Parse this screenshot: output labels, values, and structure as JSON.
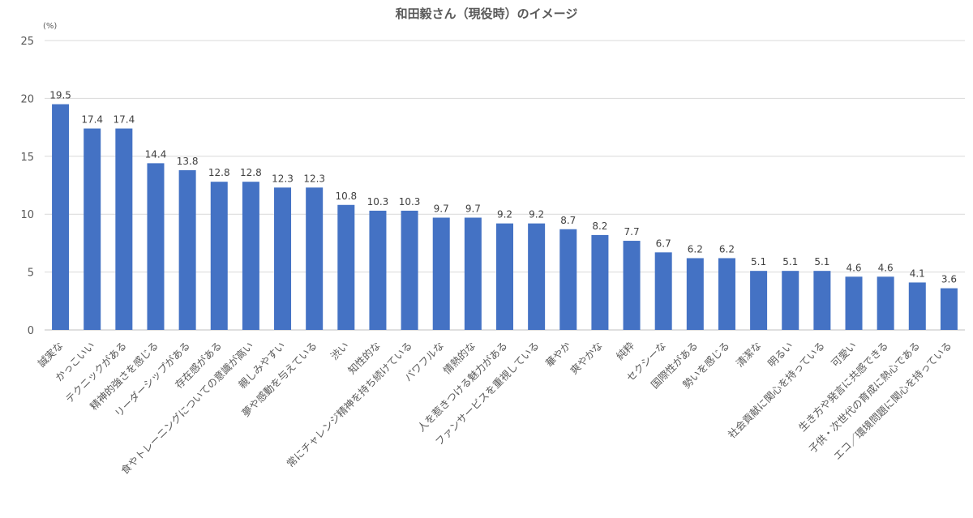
{
  "chart_data": {
    "type": "bar",
    "title": "和田毅さん（現役時）のイメージ",
    "ylabel": "(%)",
    "xlabel": "",
    "ylim": [
      0,
      25
    ],
    "yticks": [
      0,
      5,
      10,
      15,
      20,
      25
    ],
    "grid": true,
    "bar_color": "#4472C4",
    "categories": [
      "誠実な",
      "かっこいい",
      "テクニックがある",
      "精神的強さを感じる",
      "リーダーシップがある",
      "存在感がある",
      "食やトレーニングについての意識が高い",
      "親しみやすい",
      "夢や感動を与えている",
      "渋い",
      "知性的な",
      "常にチャレンジ精神を持ち続けている",
      "パワフルな",
      "情熱的な",
      "人を惹きつける魅力がある",
      "ファンサービスを重視している",
      "華やか",
      "爽やかな",
      "純粋",
      "セクシーな",
      "国際性がある",
      "勢いを感じる",
      "清潔な",
      "明るい",
      "社会貢献に関心を持っている",
      "可愛い",
      "生き方や発言に共感できる",
      "子供・次世代の育成に熱心である",
      "エコ／環境問題に関心を持っている"
    ],
    "values": [
      19.5,
      17.4,
      17.4,
      14.4,
      13.8,
      12.8,
      12.8,
      12.3,
      12.3,
      10.8,
      10.3,
      10.3,
      9.7,
      9.7,
      9.2,
      9.2,
      8.7,
      8.2,
      7.7,
      6.7,
      6.2,
      6.2,
      5.1,
      5.1,
      5.1,
      4.6,
      4.6,
      4.1,
      3.6
    ]
  }
}
